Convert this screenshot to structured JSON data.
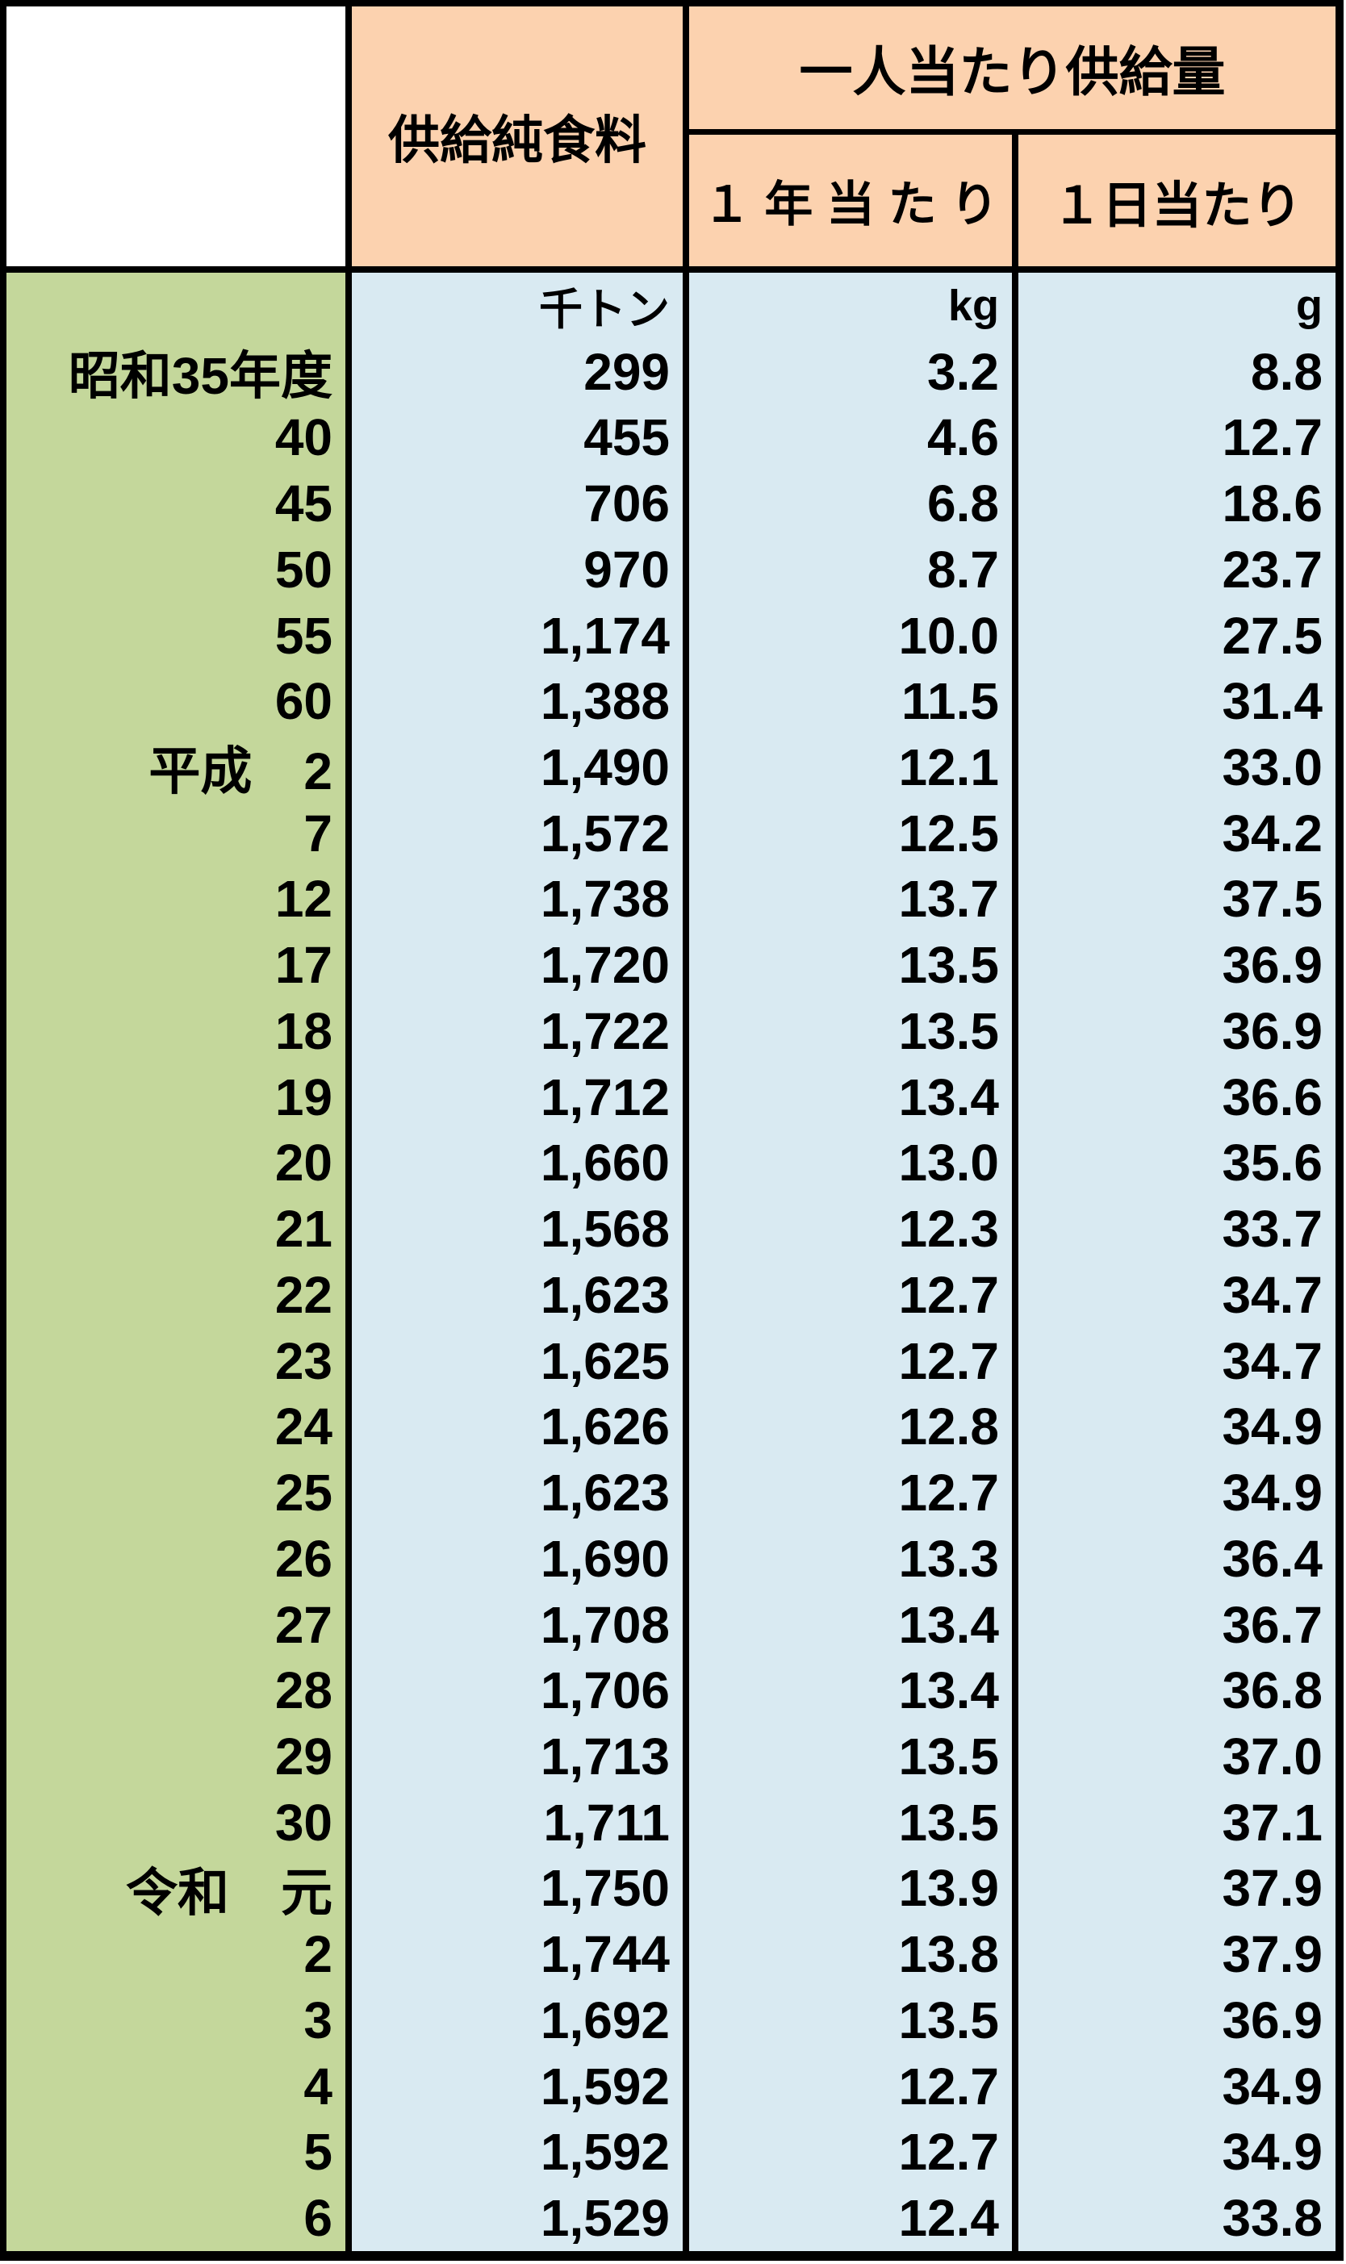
{
  "table": {
    "header": {
      "corner": "",
      "supply_label": "供給純食料",
      "per_capita_label": "一人当たり供給量",
      "per_year_label": "１ 年 当 た り",
      "per_day_label": "１日当たり"
    },
    "units": {
      "year": "",
      "supply": "千トン",
      "per_year": "kg",
      "per_day": "g"
    },
    "rows": [
      {
        "year": "昭和35年度",
        "supply": "299",
        "per_year": "3.2",
        "per_day": "8.8"
      },
      {
        "year": "40",
        "supply": "455",
        "per_year": "4.6",
        "per_day": "12.7"
      },
      {
        "year": "45",
        "supply": "706",
        "per_year": "6.8",
        "per_day": "18.6"
      },
      {
        "year": "50",
        "supply": "970",
        "per_year": "8.7",
        "per_day": "23.7"
      },
      {
        "year": "55",
        "supply": "1,174",
        "per_year": "10.0",
        "per_day": "27.5"
      },
      {
        "year": "60",
        "supply": "1,388",
        "per_year": "11.5",
        "per_day": "31.4"
      },
      {
        "year": "平成　2",
        "supply": "1,490",
        "per_year": "12.1",
        "per_day": "33.0"
      },
      {
        "year": "7",
        "supply": "1,572",
        "per_year": "12.5",
        "per_day": "34.2"
      },
      {
        "year": "12",
        "supply": "1,738",
        "per_year": "13.7",
        "per_day": "37.5"
      },
      {
        "year": "17",
        "supply": "1,720",
        "per_year": "13.5",
        "per_day": "36.9"
      },
      {
        "year": "18",
        "supply": "1,722",
        "per_year": "13.5",
        "per_day": "36.9"
      },
      {
        "year": "19",
        "supply": "1,712",
        "per_year": "13.4",
        "per_day": "36.6"
      },
      {
        "year": "20",
        "supply": "1,660",
        "per_year": "13.0",
        "per_day": "35.6"
      },
      {
        "year": "21",
        "supply": "1,568",
        "per_year": "12.3",
        "per_day": "33.7"
      },
      {
        "year": "22",
        "supply": "1,623",
        "per_year": "12.7",
        "per_day": "34.7"
      },
      {
        "year": "23",
        "supply": "1,625",
        "per_year": "12.7",
        "per_day": "34.7"
      },
      {
        "year": "24",
        "supply": "1,626",
        "per_year": "12.8",
        "per_day": "34.9"
      },
      {
        "year": "25",
        "supply": "1,623",
        "per_year": "12.7",
        "per_day": "34.9"
      },
      {
        "year": "26",
        "supply": "1,690",
        "per_year": "13.3",
        "per_day": "36.4"
      },
      {
        "year": "27",
        "supply": "1,708",
        "per_year": "13.4",
        "per_day": "36.7"
      },
      {
        "year": "28",
        "supply": "1,706",
        "per_year": "13.4",
        "per_day": "36.8"
      },
      {
        "year": "29",
        "supply": "1,713",
        "per_year": "13.5",
        "per_day": "37.0"
      },
      {
        "year": "30",
        "supply": "1,711",
        "per_year": "13.5",
        "per_day": "37.1"
      },
      {
        "year": "令和　元",
        "supply": "1,750",
        "per_year": "13.9",
        "per_day": "37.9"
      },
      {
        "year": "2",
        "supply": "1,744",
        "per_year": "13.8",
        "per_day": "37.9"
      },
      {
        "year": "3",
        "supply": "1,692",
        "per_year": "13.5",
        "per_day": "36.9"
      },
      {
        "year": "4",
        "supply": "1,592",
        "per_year": "12.7",
        "per_day": "34.9"
      },
      {
        "year": "5",
        "supply": "1,592",
        "per_year": "12.7",
        "per_day": "34.9"
      },
      {
        "year": "6",
        "supply": "1,529",
        "per_year": "12.4",
        "per_day": "33.8"
      }
    ],
    "colors": {
      "header_bg": "#FCD2AF",
      "year_col_bg": "#C4D79B",
      "data_col_bg": "#D9EAF2",
      "border": "#000000",
      "text": "#000000"
    }
  }
}
